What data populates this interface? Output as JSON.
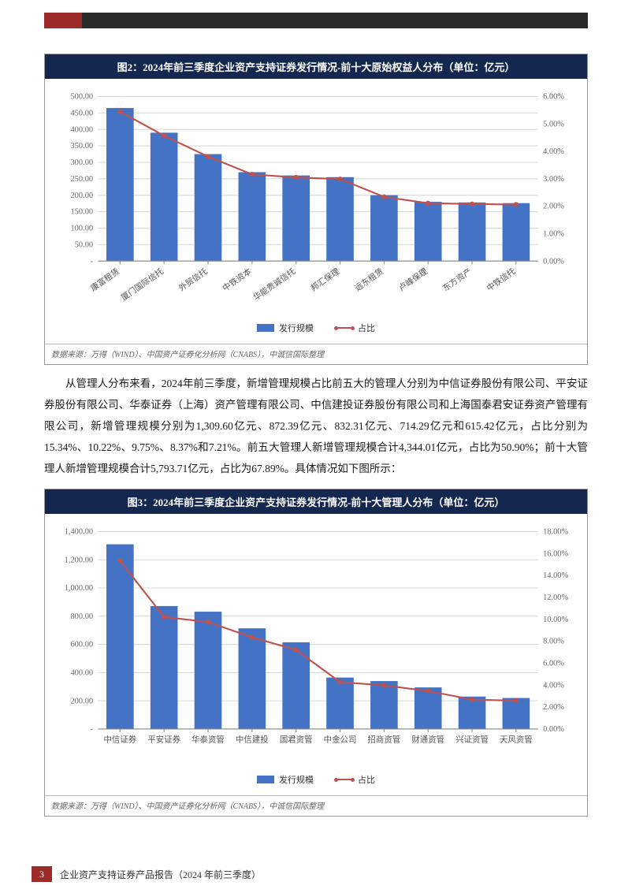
{
  "top_accent_color": "#9c2b2a",
  "top_dark_color": "#2a2a2a",
  "figure2": {
    "title": "图2：2024年前三季度企业资产支持证券发行情况-前十大原始权益人分布（单位：亿元）",
    "type": "bar+line",
    "categories": [
      "康富租赁",
      "厦门国际信托",
      "外贸信托",
      "中铁资本",
      "华能贵诚信托",
      "邦汇保理",
      "远东租赁",
      "卢峰保理",
      "东方资产",
      "中铁信托"
    ],
    "bar_values": [
      465,
      390,
      325,
      270,
      260,
      255,
      200,
      180,
      178,
      176
    ],
    "line_values": [
      5.45,
      4.57,
      3.81,
      3.16,
      3.05,
      2.99,
      2.34,
      2.11,
      2.08,
      2.06
    ],
    "bar_color": "#4472c4",
    "line_color": "#c0504d",
    "y_left": {
      "min": 0,
      "max": 500,
      "step": 50,
      "labels": [
        "-",
        "50.00",
        "100.00",
        "150.00",
        "200.00",
        "250.00",
        "300.00",
        "350.00",
        "400.00",
        "450.00",
        "500.00"
      ]
    },
    "y_right": {
      "min": 0,
      "max": 6,
      "step": 1,
      "labels": [
        "0.00%",
        "1.00%",
        "2.00%",
        "3.00%",
        "4.00%",
        "5.00%",
        "6.00%"
      ]
    },
    "grid_color": "#d9d9d9",
    "legend_bar": "发行规模",
    "legend_line": "占比",
    "source": "数据来源：万得（WIND）、中国资产证券化分析网（CNABS），中诚信国际整理",
    "label_rotate": -35
  },
  "body_para": "从管理人分布来看，2024年前三季度，新增管理规模占比前五大的管理人分别为中信证券股份有限公司、平安证券股份有限公司、华泰证券（上海）资产管理有限公司、中信建投证券股份有限公司和上海国泰君安证券资产管理有限公司，新增管理规模分别为1,309.60亿元、872.39亿元、832.31亿元、714.29亿元和615.42亿元，占比分别为15.34%、10.22%、9.75%、8.37%和7.21%。前五大管理人新增管理规模合计4,344.01亿元，占比为50.90%；前十大管理人新增管理规模合计5,793.71亿元，占比为67.89%。具体情况如下图所示：",
  "figure3": {
    "title": "图3：2024年前三季度企业资产支持证券发行情况-前十大管理人分布（单位：亿元）",
    "type": "bar+line",
    "categories": [
      "中信证券",
      "平安证券",
      "华泰资管",
      "中信建投",
      "国君资管",
      "中金公司",
      "招商资管",
      "财通资管",
      "兴证资管",
      "天风资管"
    ],
    "bar_values": [
      1310,
      872,
      832,
      714,
      615,
      365,
      340,
      295,
      230,
      220
    ],
    "line_values": [
      15.34,
      10.22,
      9.75,
      8.37,
      7.21,
      4.28,
      3.98,
      3.46,
      2.69,
      2.58
    ],
    "bar_color": "#4472c4",
    "line_color": "#c0504d",
    "y_left": {
      "min": 0,
      "max": 1400,
      "step": 200,
      "labels": [
        "-",
        "200.00",
        "400.00",
        "600.00",
        "800.00",
        "1,000.00",
        "1,200.00",
        "1,400.00"
      ]
    },
    "y_right": {
      "min": 0,
      "max": 18,
      "step": 2,
      "labels": [
        "0.00%",
        "2.00%",
        "4.00%",
        "6.00%",
        "8.00%",
        "10.00%",
        "12.00%",
        "14.00%",
        "16.00%",
        "18.00%"
      ]
    },
    "grid_color": "#d9d9d9",
    "legend_bar": "发行规模",
    "legend_line": "占比",
    "source": "数据来源：万得（WIND）、中国资产证券化分析网（CNABS），中诚信国际整理",
    "label_rotate": 0
  },
  "footer": {
    "page_num": "3",
    "text": "企业资产支持证券产品报告（2024 年前三季度）"
  }
}
